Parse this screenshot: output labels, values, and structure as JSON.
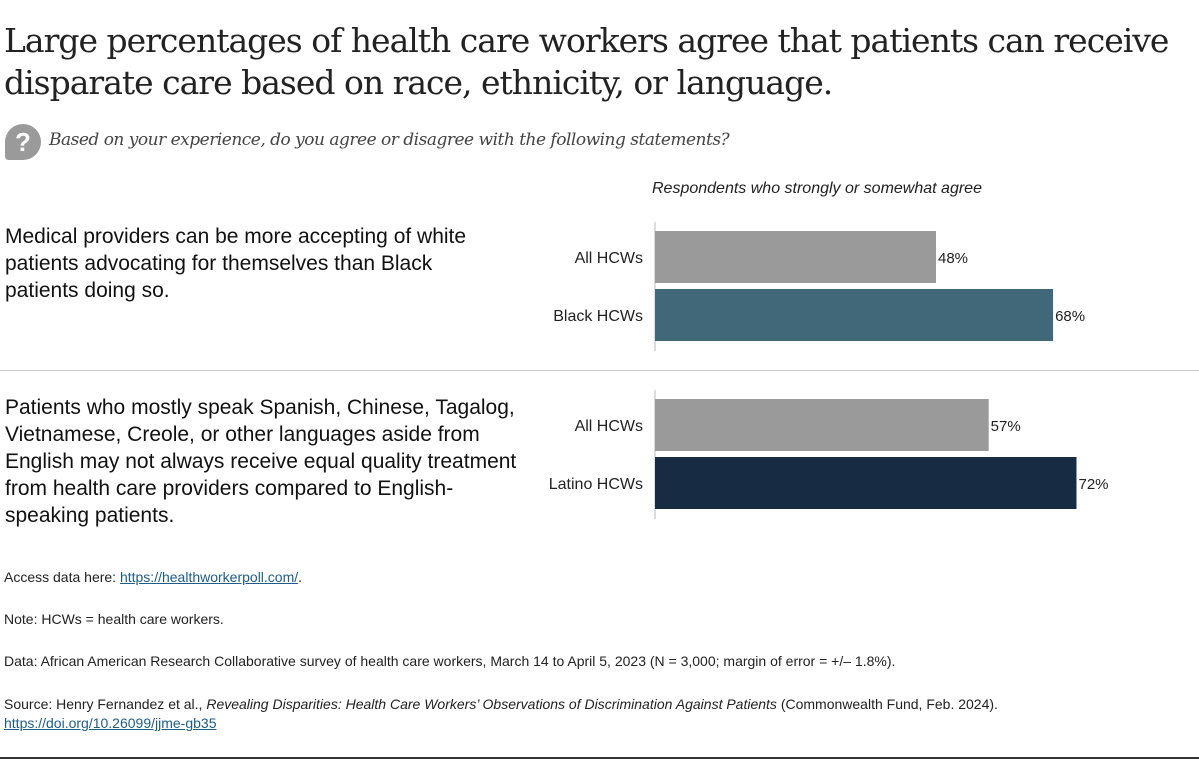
{
  "title": "Large percentages of health care workers agree that patients can receive disparate care based on race, ethnicity, or language.",
  "question_icon": "question-bubble-icon",
  "question": "Based on your experience, do you agree or disagree with the following statements?",
  "statements": [
    "Medical providers can be more accepting of white patients advocating for themselves than Black patients doing so.",
    "Patients who mostly speak Spanish, Chinese, Tagalog, Vietnamese, Creole, or other languages aside from English may not always receive equal quality treatment from health care providers compared to English-speaking patients."
  ],
  "chart_data": {
    "type": "bar",
    "orientation": "horizontal",
    "subtitle": "Respondents who strongly or somewhat agree",
    "xlim": [
      0,
      100
    ],
    "groups": [
      {
        "categories": [
          "All HCWs",
          "Black HCWs"
        ],
        "values": [
          48,
          68
        ],
        "labels": [
          "48%",
          "68%"
        ],
        "colors": [
          "#9a9a9a",
          "#416878"
        ]
      },
      {
        "categories": [
          "All HCWs",
          "Latino HCWs"
        ],
        "values": [
          57,
          72
        ],
        "labels": [
          "57%",
          "72%"
        ],
        "colors": [
          "#9a9a9a",
          "#172b43"
        ]
      }
    ]
  },
  "footer": {
    "access_prefix": "Access data here: ",
    "access_link": "https://healthworkerpoll.com/",
    "access_suffix": ".",
    "note": "Note: HCWs = health care workers.",
    "data": "Data: African American Research Collaborative survey of health care workers, March 14 to April 5, 2023 (N = 3,000; margin of error = +/– 1.8%).",
    "source_prefix": "Source: Henry Fernandez et al., ",
    "source_title": "Revealing Disparities: Health Care Workers’ Observations of Discrimination Against Patients",
    "source_suffix": " (Commonwealth Fund, Feb. 2024).",
    "doi": "https://doi.org/10.26099/jjme-gb35"
  }
}
